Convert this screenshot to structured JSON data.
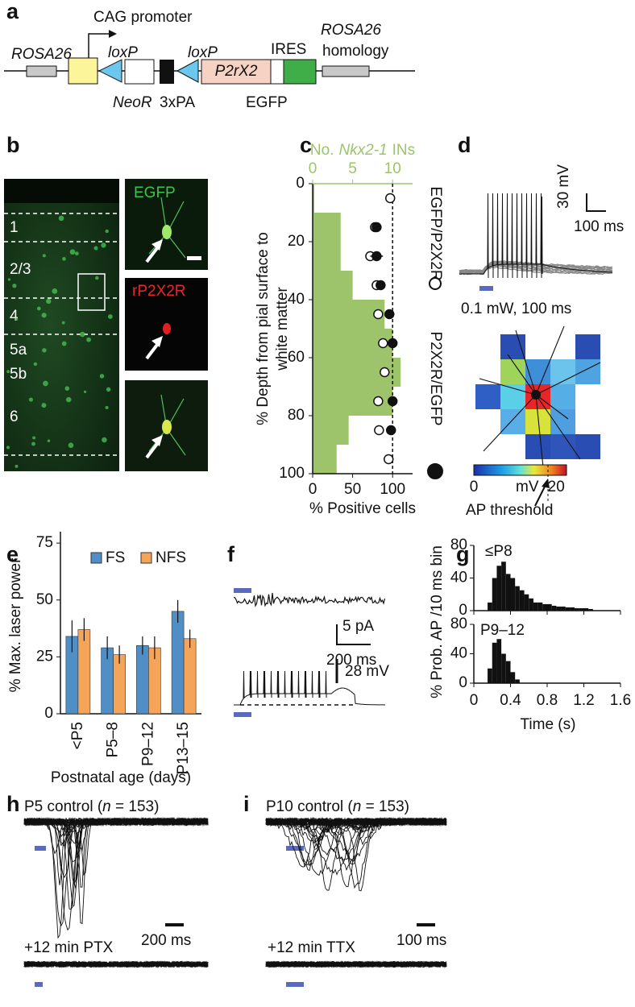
{
  "panel_labels": [
    "a",
    "b",
    "c",
    "d",
    "e",
    "f",
    "g",
    "h",
    "i"
  ],
  "construct": {
    "promoter": "CAG promoter",
    "rosa_left": "ROSA26",
    "loxp_1": "loxP",
    "loxp_2": "loxP",
    "ires": "IRES",
    "rosa_right": "ROSA26",
    "homology": "homology",
    "gene": "P2rX2",
    "neor": "NeoR",
    "pa": "3xPA",
    "egfp": "EGFP"
  },
  "histology": {
    "layers": [
      "1",
      "2/3",
      "4",
      "5a",
      "5b",
      "6"
    ],
    "channels": [
      "EGFP",
      "rP2X2R"
    ]
  },
  "chart_data": [
    {
      "type": "profile",
      "xlabel": "% Positive cells",
      "ylabel": [
        "% Depth from pial surface to",
        "white matter"
      ],
      "top_xlabel": [
        "No.",
        "Nkx2-1",
        "INs"
      ],
      "xlim": [
        0,
        125
      ],
      "xticks": [
        0,
        50,
        100
      ],
      "ylim": [
        0,
        100
      ],
      "yticks": [
        0,
        20,
        40,
        60,
        80,
        100
      ],
      "top_xlim": [
        0,
        12.5
      ],
      "top_xticks": [
        0,
        5,
        10
      ],
      "reference_line": 100,
      "histogram": {
        "bins": [
          0,
          10,
          20,
          30,
          40,
          50,
          60,
          70,
          80,
          90,
          100
        ],
        "counts": [
          0.2,
          3.5,
          3.5,
          5,
          9,
          10,
          11,
          10,
          4.5,
          3
        ],
        "color": "#9dc46a"
      },
      "series": [
        {
          "name": "EGFP/P2X2R",
          "marker": "open",
          "depths": [
            5,
            15,
            25,
            35,
            45,
            55,
            65,
            75,
            85,
            95
          ],
          "values": [
            97,
            78,
            72,
            80,
            82,
            88,
            90,
            82,
            83,
            95
          ],
          "errors": [
            0,
            6,
            6,
            6,
            4,
            3,
            3,
            4,
            5,
            2
          ]
        },
        {
          "name": "P2X2R/EGFP",
          "marker": "filled",
          "depths": [
            15,
            25,
            35,
            45,
            55,
            75,
            85
          ],
          "values": [
            80,
            80,
            85,
            96,
            100,
            100,
            98
          ],
          "errors": [
            5,
            8,
            6,
            3,
            3,
            3,
            3
          ]
        }
      ]
    },
    {
      "type": "bar",
      "ylabel": "% Max. laser power",
      "xlabel": "Postnatal age (days)",
      "categories": [
        "<P5",
        "P5–8",
        "P9–12",
        "P13–15"
      ],
      "ylim": [
        0,
        80
      ],
      "yticks": [
        0,
        25,
        50,
        75
      ],
      "series": [
        {
          "name": "FS",
          "color": "#4f8fc6",
          "values": [
            34,
            29,
            30,
            45
          ],
          "errors": [
            7,
            5,
            4,
            5
          ]
        },
        {
          "name": "NFS",
          "color": "#f5a55a",
          "values": [
            37,
            26,
            29,
            33
          ],
          "errors": [
            5,
            4,
            5,
            4
          ]
        }
      ]
    },
    {
      "type": "histogram",
      "ylabel": "% Prob. AP /10 ms bin",
      "xlabel": "Time (s)",
      "xlim": [
        0,
        1.6
      ],
      "xticks": [
        0,
        0.4,
        0.8,
        1.2,
        1.6
      ],
      "ylim": [
        0,
        80
      ],
      "yticks": [
        0,
        40,
        80
      ],
      "panels": [
        {
          "label": "≤P8",
          "bins": [
            0.15,
            0.2,
            0.25,
            0.3,
            0.35,
            0.4,
            0.45,
            0.5,
            0.55,
            0.6,
            0.65,
            0.7,
            0.75,
            0.8,
            0.85,
            0.9,
            0.95,
            1.0,
            1.05,
            1.1,
            1.15,
            1.2,
            1.25,
            1.3
          ],
          "counts": [
            10,
            40,
            55,
            60,
            45,
            40,
            30,
            25,
            20,
            15,
            10,
            10,
            8,
            8,
            6,
            5,
            5,
            4,
            4,
            3,
            3,
            3,
            2
          ]
        },
        {
          "label": "P9–12",
          "bins": [
            0.15,
            0.2,
            0.25,
            0.3,
            0.35,
            0.4,
            0.45,
            0.5
          ],
          "counts": [
            20,
            55,
            60,
            40,
            30,
            15,
            5
          ]
        }
      ]
    }
  ],
  "recordings": {
    "d": {
      "scale_v": "30 mV",
      "scale_t": "100 ms",
      "stim": "0.1 mW, 100 ms",
      "clim": [
        0,
        22.5
      ],
      "colorbar_ticks": [
        0,
        20
      ],
      "colorbar_unit": "mV",
      "threshold": "AP threshold"
    },
    "f": {
      "scale_i": "5 pA",
      "scale_t": "200 ms",
      "scale_v": "28 mV"
    },
    "h": {
      "title_start": "P5 control (",
      "n": "n",
      "title_end": " = 153)",
      "scale_t": "200 ms",
      "drug": "+12 min PTX"
    },
    "i": {
      "title_start": "P10 control (",
      "n": "n",
      "title_end": " = 153)",
      "scale_t": "100 ms",
      "drug": "+12 min TTX"
    }
  }
}
